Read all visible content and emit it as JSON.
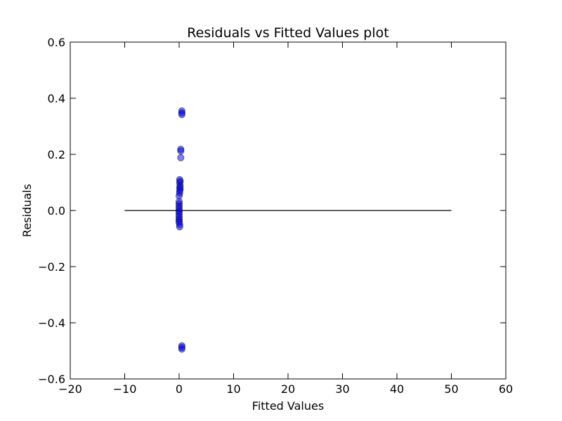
{
  "chart_data": {
    "type": "scatter",
    "title": "Residuals vs Fitted Values plot",
    "xlabel": "Fitted Values",
    "ylabel": "Residuals",
    "xlim": [
      -20,
      60
    ],
    "ylim": [
      -0.6,
      0.6
    ],
    "x_ticks": [
      -20,
      -10,
      0,
      10,
      20,
      30,
      40,
      50,
      60
    ],
    "x_tick_labels": [
      "−20",
      "−10",
      "0",
      "10",
      "20",
      "30",
      "40",
      "50",
      "60"
    ],
    "y_ticks": [
      -0.6,
      -0.4,
      -0.2,
      0.0,
      0.2,
      0.4,
      0.6
    ],
    "y_tick_labels": [
      "−0.6",
      "−0.4",
      "−0.2",
      "0.0",
      "0.2",
      "0.4",
      "0.6"
    ],
    "grid": false,
    "colors": {
      "points": "#0000ff",
      "point_edge": "#000000",
      "line": "#000000",
      "alt_points": "#33cc33"
    },
    "reference_line": {
      "x": [
        -10,
        50
      ],
      "y": [
        0.0,
        0.0
      ]
    },
    "points": [
      {
        "x": 0.5,
        "y": 0.355
      },
      {
        "x": 0.5,
        "y": 0.348
      },
      {
        "x": 0.5,
        "y": 0.342
      },
      {
        "x": 0.3,
        "y": 0.218
      },
      {
        "x": 0.3,
        "y": 0.212
      },
      {
        "x": 0.3,
        "y": 0.188
      },
      {
        "x": 0.1,
        "y": 0.11
      },
      {
        "x": 0.2,
        "y": 0.104
      },
      {
        "x": 0.1,
        "y": 0.098
      },
      {
        "x": 0.2,
        "y": 0.088
      },
      {
        "x": 0.1,
        "y": 0.082
      },
      {
        "x": 0.2,
        "y": 0.076
      },
      {
        "x": 0.1,
        "y": 0.07
      },
      {
        "x": 0.1,
        "y": 0.062
      },
      {
        "x": 0.0,
        "y": 0.052
      },
      {
        "x": 0.0,
        "y": 0.032
      },
      {
        "x": 0.0,
        "y": 0.024
      },
      {
        "x": 0.0,
        "y": 0.016
      },
      {
        "x": 0.0,
        "y": 0.008
      },
      {
        "x": 0.0,
        "y": 0.0
      },
      {
        "x": 0.0,
        "y": -0.006
      },
      {
        "x": 0.0,
        "y": -0.014
      },
      {
        "x": 0.0,
        "y": -0.022
      },
      {
        "x": 0.0,
        "y": -0.03
      },
      {
        "x": 0.0,
        "y": -0.036
      },
      {
        "x": 0.0,
        "y": -0.042
      },
      {
        "x": 0.1,
        "y": -0.05
      },
      {
        "x": 0.1,
        "y": -0.058
      },
      {
        "x": 0.5,
        "y": -0.482
      },
      {
        "x": 0.5,
        "y": -0.488
      },
      {
        "x": 0.5,
        "y": -0.494
      }
    ]
  }
}
